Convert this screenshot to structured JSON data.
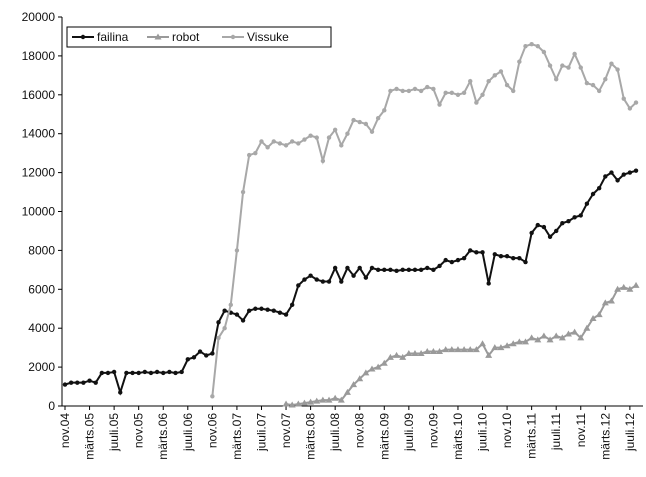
{
  "chart_data": {
    "type": "line",
    "categories": [
      "nov.04",
      null,
      null,
      null,
      "märts.05",
      null,
      null,
      null,
      "juuli.05",
      null,
      null,
      null,
      "nov.05",
      null,
      null,
      null,
      "märts.06",
      null,
      null,
      null,
      "juuli.06",
      null,
      null,
      null,
      "nov.06",
      null,
      null,
      null,
      "märts.07",
      null,
      null,
      null,
      "juuli.07",
      null,
      null,
      null,
      "nov.07",
      null,
      null,
      null,
      "märts.08",
      null,
      null,
      null,
      "juuli.08",
      null,
      null,
      null,
      "nov.08",
      null,
      null,
      null,
      "märts.09",
      null,
      null,
      null,
      "juuli.09",
      null,
      null,
      null,
      "nov.09",
      null,
      null,
      null,
      "märts.10",
      null,
      null,
      null,
      "juuli.10",
      null,
      null,
      null,
      "nov.10",
      null,
      null,
      null,
      "märts.11",
      null,
      null,
      null,
      "juuli.11",
      null,
      null,
      null,
      "nov.11",
      null,
      null,
      null,
      "märts.12",
      null,
      null,
      null,
      "juuli.12",
      null
    ],
    "series": [
      {
        "name": "failina",
        "color": "#111111",
        "marker": "circle",
        "values": [
          1100,
          1200,
          1200,
          1200,
          1300,
          1200,
          1700,
          1700,
          1750,
          700,
          1700,
          1700,
          1700,
          1750,
          1700,
          1750,
          1700,
          1750,
          1700,
          1750,
          2400,
          2500,
          2800,
          2600,
          2700,
          4300,
          4900,
          4800,
          4700,
          4400,
          4900,
          5000,
          5000,
          4950,
          4900,
          4800,
          4700,
          5200,
          6200,
          6500,
          6700,
          6500,
          6400,
          6400,
          7100,
          6400,
          7100,
          6700,
          7100,
          6600,
          7100,
          7000,
          7000,
          7000,
          6950,
          7000,
          7000,
          7000,
          7000,
          7100,
          7000,
          7200,
          7500,
          7400,
          7500,
          7600,
          8000,
          7900,
          7900,
          6300,
          7800,
          7700,
          7700,
          7600,
          7600,
          7400,
          8900,
          9300,
          9200,
          8700,
          9000,
          9400,
          9500,
          9700,
          9800,
          10400,
          10900,
          11200,
          11800,
          12000,
          11600,
          11900,
          12000,
          12100
        ]
      },
      {
        "name": "robot",
        "color": "#9a9a9a",
        "marker": "triangle",
        "values": [
          null,
          null,
          null,
          null,
          null,
          null,
          null,
          null,
          null,
          null,
          null,
          null,
          null,
          null,
          null,
          null,
          null,
          null,
          null,
          null,
          null,
          null,
          null,
          null,
          null,
          null,
          null,
          null,
          null,
          null,
          null,
          null,
          null,
          null,
          null,
          null,
          100,
          50,
          100,
          150,
          200,
          250,
          300,
          300,
          400,
          300,
          700,
          1100,
          1400,
          1700,
          1900,
          2000,
          2200,
          2500,
          2600,
          2500,
          2700,
          2700,
          2700,
          2800,
          2800,
          2800,
          2900,
          2900,
          2900,
          2900,
          2900,
          2900,
          3200,
          2600,
          3000,
          3000,
          3100,
          3200,
          3300,
          3300,
          3500,
          3400,
          3600,
          3400,
          3600,
          3500,
          3700,
          3800,
          3500,
          4000,
          4500,
          4700,
          5300,
          5400,
          6000,
          6100,
          6000,
          6200
        ]
      },
      {
        "name": "Vissuke",
        "color": "#a8a8a8",
        "marker": "circle",
        "values": [
          null,
          null,
          null,
          null,
          null,
          null,
          null,
          null,
          null,
          null,
          null,
          null,
          null,
          null,
          null,
          null,
          null,
          null,
          null,
          null,
          null,
          null,
          null,
          null,
          500,
          3500,
          4000,
          5200,
          8000,
          11000,
          12900,
          13000,
          13600,
          13300,
          13600,
          13500,
          13400,
          13600,
          13500,
          13700,
          13900,
          13800,
          12600,
          13800,
          14200,
          13400,
          14000,
          14700,
          14600,
          14500,
          14100,
          14800,
          15200,
          16200,
          16300,
          16200,
          16200,
          16300,
          16200,
          16400,
          16300,
          15500,
          16100,
          16100,
          16000,
          16100,
          16700,
          15600,
          16000,
          16700,
          17000,
          17200,
          16500,
          16200,
          17700,
          18500,
          18600,
          18500,
          18200,
          17500,
          16800,
          17500,
          17400,
          18100,
          17400,
          16600,
          16500,
          16200,
          16800,
          17600,
          17300,
          15800,
          15300,
          15600
        ]
      }
    ],
    "ylim": [
      0,
      20000
    ],
    "yticks": [
      0,
      2000,
      4000,
      6000,
      8000,
      10000,
      12000,
      14000,
      16000,
      18000,
      20000
    ],
    "legend": "top-left",
    "grid": false
  }
}
